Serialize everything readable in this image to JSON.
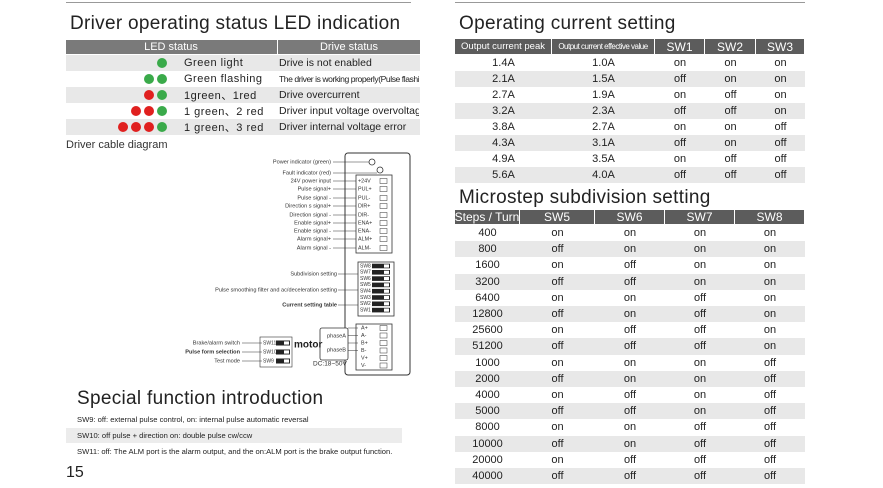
{
  "led_section": {
    "title": "Driver operating status LED indication",
    "headers": [
      "LED status",
      "Drive status"
    ],
    "rows": [
      {
        "leds": [
          "#3aaa4a"
        ],
        "label": "Green light",
        "status": "Drive is not enabled"
      },
      {
        "leds": [
          "#3aaa4a",
          "#3aaa4a"
        ],
        "label": "Green flashing",
        "status": "The driver is working properly(Pulse flashing faster)"
      },
      {
        "leds": [
          "#e0201f",
          "#3aaa4a"
        ],
        "label": "1green、1red",
        "status": "Drive overcurrent"
      },
      {
        "leds": [
          "#e0201f",
          "#e0201f",
          "#3aaa4a"
        ],
        "label": "1 green、2 red",
        "status": "Driver input voltage overvoltage"
      },
      {
        "leds": [
          "#e0201f",
          "#e0201f",
          "#e0201f",
          "#3aaa4a"
        ],
        "label": "1 green、3 red",
        "status": "Driver internal voltage error"
      }
    ]
  },
  "cable_diagram": {
    "title": "Driver cable diagram",
    "signals": [
      {
        "label": "Power indicator (green)",
        "terminal": null
      },
      {
        "label": "Fault indicator (red)",
        "terminal": null
      },
      {
        "label": "24V power input",
        "terminal": "+24V"
      },
      {
        "label": "Pulse signal+",
        "terminal": "PUL+"
      },
      {
        "label": "Pulse signal -",
        "terminal": "PUL-"
      },
      {
        "label": "Direction s signal+",
        "terminal": "DIR+"
      },
      {
        "label": "Direction signal -",
        "terminal": "DIR-"
      },
      {
        "label": "Enable signal+",
        "terminal": "ENA+"
      },
      {
        "label": "Enable signal -",
        "terminal": "ENA-"
      },
      {
        "label": "Alarm signal+",
        "terminal": "ALM+"
      },
      {
        "label": "Alarm signal -",
        "terminal": "ALM-"
      }
    ],
    "dip_switches": [
      "SW8",
      "SW7",
      "SW6",
      "SW5",
      "SW4",
      "SW3",
      "SW2",
      "SW1"
    ],
    "switch_labels": [
      "Subdivision setting",
      "Pulse smoothing filter and ac/deceleration setting",
      "Current setting table"
    ],
    "side_switches": [
      {
        "label": "Brake/alarm switch",
        "switch": "SW11"
      },
      {
        "label": "Pulse form selection",
        "switch": "SW10"
      },
      {
        "label": "Test mode",
        "switch": "SW9"
      }
    ],
    "motor": "motor",
    "phases": [
      "phaseA",
      "phaseB"
    ],
    "motor_terminals": [
      "A+",
      "A-",
      "B+",
      "B-",
      "V+",
      "V-"
    ],
    "power": "DC:18~50V"
  },
  "special_section": {
    "title": "Special function introduction",
    "lines": [
      "SW9: off: external pulse control, on: internal pulse automatic reversal",
      "SW10: off pulse + direction on: double pulse cw/ccw",
      "SW11: off: The ALM port is the alarm output, and the on:ALM port is the brake output function."
    ]
  },
  "page_number": "15",
  "current_table": {
    "title": "Operating current setting",
    "headers": [
      "Output current peak",
      "Output current effective value",
      "SW1",
      "SW2",
      "SW3"
    ],
    "rows": [
      [
        "1.4A",
        "1.0A",
        "on",
        "on",
        "on"
      ],
      [
        "2.1A",
        "1.5A",
        "off",
        "on",
        "on"
      ],
      [
        "2.7A",
        "1.9A",
        "on",
        "off",
        "on"
      ],
      [
        "3.2A",
        "2.3A",
        "off",
        "off",
        "on"
      ],
      [
        "3.8A",
        "2.7A",
        "on",
        "on",
        "off"
      ],
      [
        "4.3A",
        "3.1A",
        "off",
        "on",
        "off"
      ],
      [
        "4.9A",
        "3.5A",
        "on",
        "off",
        "off"
      ],
      [
        "5.6A",
        "4.0A",
        "off",
        "off",
        "off"
      ]
    ]
  },
  "microstep_table": {
    "title": "Microstep subdivision setting",
    "headers": [
      "Steps / Turn",
      "SW5",
      "SW6",
      "SW7",
      "SW8"
    ],
    "rows": [
      [
        "400",
        "on",
        "on",
        "on",
        "on"
      ],
      [
        "800",
        "off",
        "on",
        "on",
        "on"
      ],
      [
        "1600",
        "on",
        "off",
        "on",
        "on"
      ],
      [
        "3200",
        "off",
        "off",
        "on",
        "on"
      ],
      [
        "6400",
        "on",
        "on",
        "off",
        "on"
      ],
      [
        "12800",
        "off",
        "on",
        "off",
        "on"
      ],
      [
        "25600",
        "on",
        "off",
        "off",
        "on"
      ],
      [
        "51200",
        "off",
        "off",
        "off",
        "on"
      ],
      [
        "1000",
        "on",
        "on",
        "on",
        "off"
      ],
      [
        "2000",
        "off",
        "on",
        "on",
        "off"
      ],
      [
        "4000",
        "on",
        "off",
        "on",
        "off"
      ],
      [
        "5000",
        "off",
        "off",
        "on",
        "off"
      ],
      [
        "8000",
        "on",
        "on",
        "off",
        "off"
      ],
      [
        "10000",
        "off",
        "on",
        "off",
        "off"
      ],
      [
        "20000",
        "on",
        "off",
        "off",
        "off"
      ],
      [
        "40000",
        "off",
        "off",
        "off",
        "off"
      ]
    ]
  }
}
